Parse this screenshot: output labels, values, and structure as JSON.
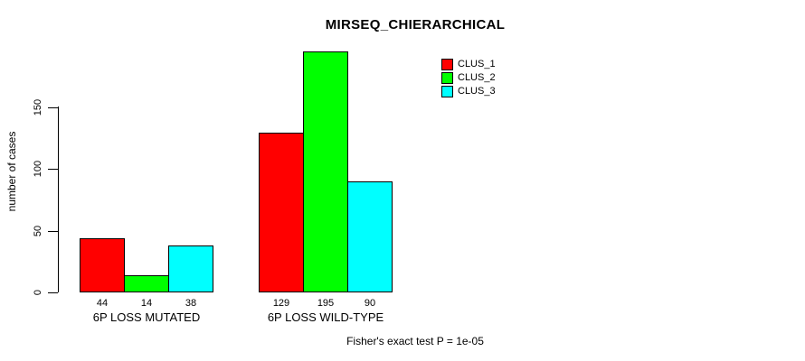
{
  "chart_data": {
    "type": "bar",
    "title": "MIRSEQ_CHIERARCHICAL",
    "xlabel": "",
    "ylabel": "number of cases",
    "categories": [
      "6P LOSS MUTATED",
      "6P LOSS WILD-TYPE"
    ],
    "series": [
      {
        "name": "CLUS_1",
        "color": "#ff0000",
        "values": [
          44,
          129
        ]
      },
      {
        "name": "CLUS_2",
        "color": "#00ff00",
        "values": [
          14,
          195
        ]
      },
      {
        "name": "CLUS_3",
        "color": "#00ffff",
        "values": [
          38,
          90
        ]
      }
    ],
    "yticks": [
      0,
      50,
      100,
      150
    ],
    "ylim": [
      0,
      200
    ],
    "grid": false,
    "legend_position": "top-right",
    "bar_value_labels_shown": true,
    "annotation": "Fisher's exact test P = 1e-05",
    "colors": {
      "axis": "#000000",
      "bar_border": "#000000",
      "background": "#ffffff",
      "text": "#000000"
    }
  }
}
